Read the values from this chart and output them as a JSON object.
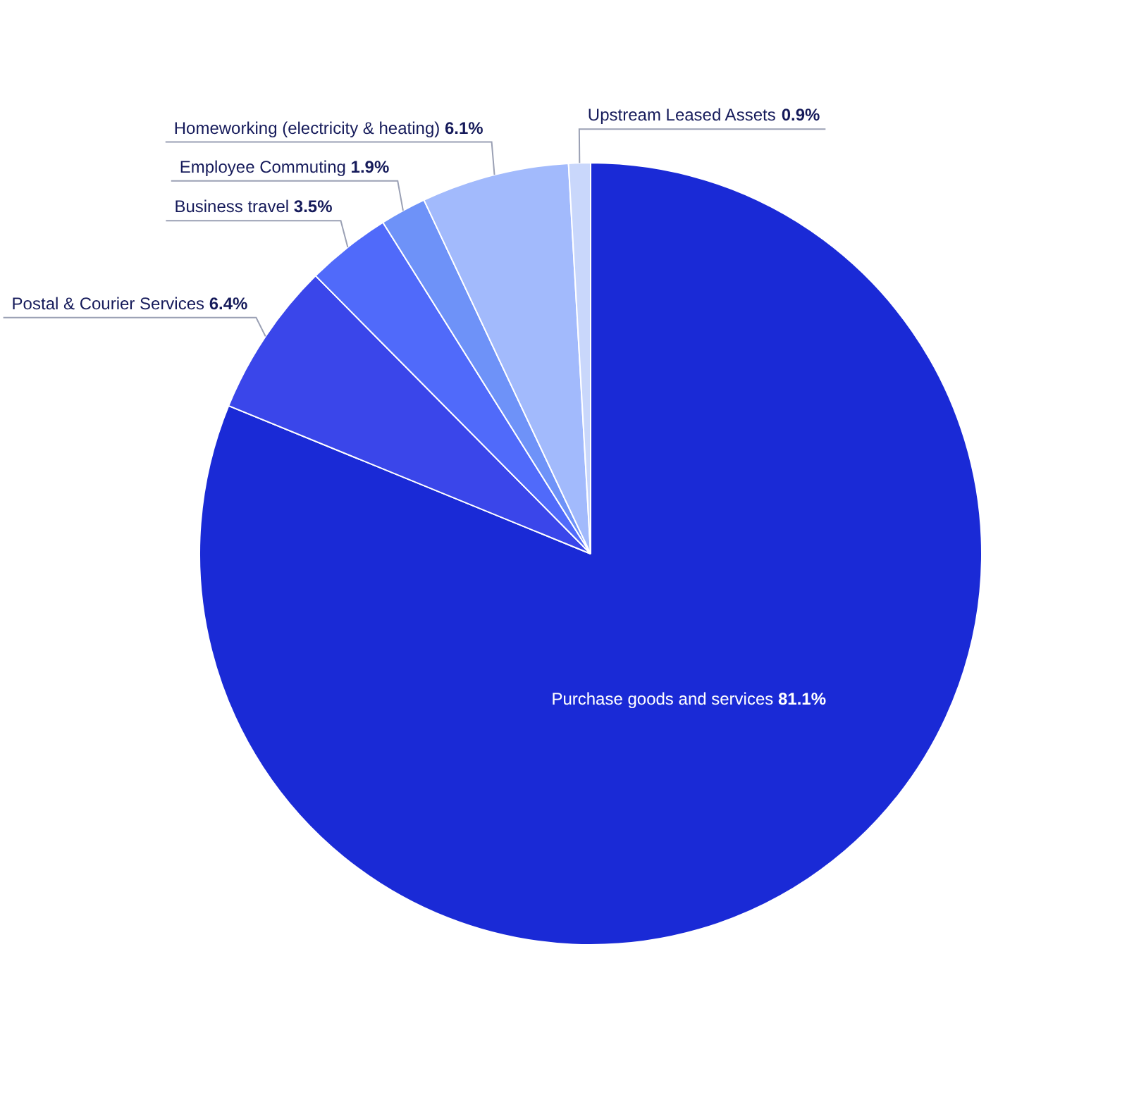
{
  "chart_data": {
    "type": "pie",
    "categories": [
      "Purchase goods and services",
      "Postal & Courier Services",
      "Business travel",
      "Employee Commuting",
      "Homeworking (electricity & heating)",
      "Upstream Leased Assets"
    ],
    "values": [
      81.1,
      6.4,
      3.5,
      1.9,
      6.1,
      0.9
    ],
    "value_labels": [
      "81.1%",
      "6.4%",
      "3.5%",
      "1.9%",
      "6.1%",
      "0.9%"
    ],
    "colors": [
      "#1a2ad6",
      "#3a46ea",
      "#506afa",
      "#6e92f8",
      "#a2bafc",
      "#c9d7fb"
    ],
    "legend": false
  }
}
